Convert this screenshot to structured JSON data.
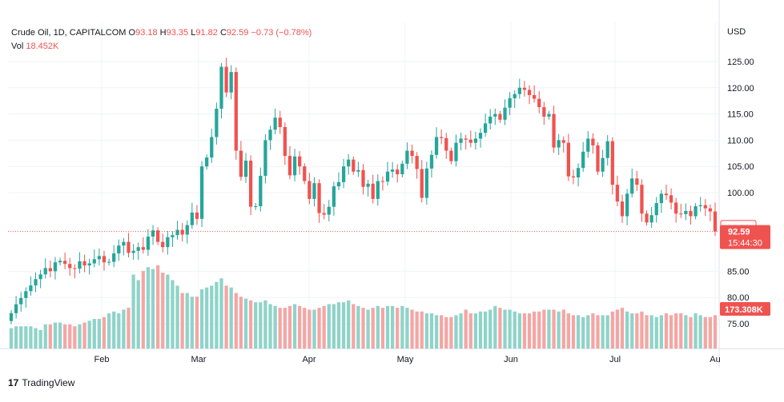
{
  "header": {
    "symbol": "Crude Oil, 1D, CAPITALCOM",
    "open_label": "O",
    "open": "93.18",
    "high_label": "H",
    "high": "93.35",
    "low_label": "L",
    "low": "91.82",
    "close_label": "C",
    "close": "92.59",
    "change": "−0.73 (−0.78%)",
    "vol_label": "Vol",
    "vol_value": "18.452K"
  },
  "currency": "USD",
  "brand": "TradingView",
  "badges": {
    "prev_close": "93.32",
    "last_price": "92.59",
    "countdown": "15:44:30",
    "volume": "173.308K"
  },
  "colors": {
    "up": "#26a69a",
    "down": "#ef5350",
    "up_vol": "#8fd3c9",
    "down_vol": "#f4a6a4",
    "grid": "#f0f3fa",
    "text": "#131722"
  },
  "chart_data": {
    "type": "candlestick",
    "title": "Crude Oil, 1D, CAPITALCOM",
    "x_ticks": [
      "Feb",
      "Mar",
      "Apr",
      "May",
      "Jun",
      "Jul",
      "Au"
    ],
    "y_ticks": [
      75,
      80,
      85,
      100,
      105,
      110,
      115,
      120,
      125
    ],
    "ylim": [
      70,
      130
    ],
    "last_close": 92.59,
    "prev_close": 93.32,
    "series": [
      {
        "name": "Price",
        "ohlc_start": [
          77.0,
          77.0,
          77.0,
          77.0
        ],
        "closes": [
          77.0,
          78.7,
          79.9,
          81.2,
          82.3,
          83.5,
          84.4,
          85.6,
          85.0,
          86.7,
          87.0,
          86.4,
          85.6,
          85.5,
          86.9,
          86.1,
          86.5,
          87.3,
          87.9,
          86.7,
          86.8,
          88.4,
          89.9,
          90.6,
          88.5,
          88.9,
          89.6,
          89.1,
          91.6,
          92.8,
          90.6,
          89.6,
          91.5,
          91.9,
          92.9,
          92.0,
          93.8,
          96.2,
          95.0,
          105.0,
          106.7,
          110.6,
          116.0,
          124.0,
          119.1,
          123.0,
          108.0,
          103.0,
          106.1,
          97.3,
          97.4,
          103.2,
          110.0,
          112.0,
          114.3,
          112.5,
          107.0,
          103.3,
          106.9,
          105.0,
          102.2,
          98.8,
          101.8,
          96.1,
          95.8,
          97.3,
          101.2,
          102.0,
          105.0,
          106.3,
          104.0,
          104.3,
          101.1,
          101.7,
          98.8,
          102.2,
          102.1,
          104.0,
          104.4,
          103.5,
          105.5,
          108.0,
          107.0,
          104.5,
          99.0,
          104.6,
          107.2,
          110.6,
          110.4,
          108.0,
          106.0,
          109.5,
          110.3,
          110.1,
          109.5,
          110.3,
          111.4,
          113.2,
          114.5,
          115.0,
          113.9,
          116.2,
          118.0,
          118.8,
          120.0,
          119.6,
          118.6,
          117.9,
          116.3,
          114.5,
          115.0,
          108.6,
          110.0,
          109.5,
          103.1,
          102.9,
          104.7,
          107.8,
          110.3,
          109.0,
          104.0,
          106.6,
          109.8,
          101.5,
          98.3,
          95.5,
          99.8,
          102.7,
          101.5,
          96.0,
          94.3,
          95.7,
          98.0,
          99.8,
          99.5,
          98.1,
          96.0,
          95.9,
          96.5,
          95.5,
          97.4,
          97.6,
          97.0,
          96.4,
          92.59
        ],
        "volumes_k": [
          11,
          12,
          12,
          12,
          12,
          11,
          10,
          13,
          13,
          14,
          14,
          13,
          13,
          12,
          13,
          14,
          15,
          16,
          16,
          17,
          19,
          20,
          19,
          21,
          22,
          40,
          37,
          42,
          44,
          43,
          45,
          41,
          40,
          37,
          34,
          30,
          30,
          28,
          28,
          32,
          33,
          34,
          36,
          38,
          34,
          33,
          30,
          28,
          27,
          26,
          25,
          25,
          26,
          24,
          23,
          22,
          22,
          23,
          24,
          23,
          22,
          21,
          21,
          22,
          23,
          24,
          24,
          25,
          25,
          26,
          24,
          23,
          22,
          21,
          22,
          23,
          22,
          23,
          23,
          22,
          23,
          22,
          21,
          20,
          20,
          19,
          19,
          18,
          18,
          17,
          17,
          18,
          19,
          21,
          19,
          19,
          20,
          20,
          21,
          23,
          22,
          21,
          21,
          20,
          19,
          19,
          19,
          20,
          20,
          21,
          21,
          21,
          20,
          21,
          19,
          18,
          18,
          17,
          18,
          19,
          18,
          18,
          18,
          20,
          21,
          22,
          20,
          19,
          19,
          20,
          18,
          18,
          17,
          18,
          19,
          18,
          19,
          19,
          18,
          17,
          19,
          18,
          17,
          17,
          18
        ]
      }
    ]
  }
}
